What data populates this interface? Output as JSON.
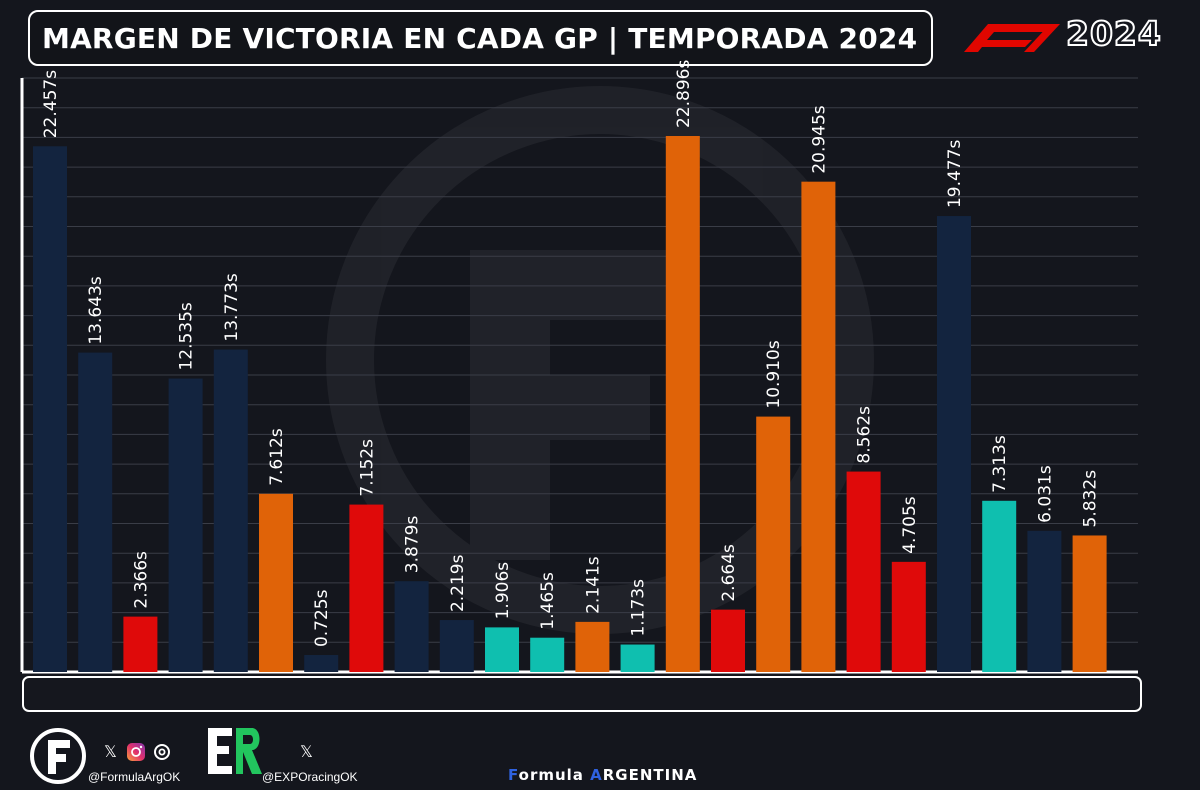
{
  "header": {
    "title": "MARGEN DE VICTORIA EN CADA GP | TEMPORADA 2024",
    "logo_year": "2024"
  },
  "colors": {
    "Red Bull": "#13243f",
    "McLaren": "#e06308",
    "Ferrari": "#df0a0a",
    "Mercedes": "#0fbfaf"
  },
  "chart_data": {
    "type": "bar",
    "title": "MARGEN DE VICTORIA EN CADA GP | TEMPORADA 2024",
    "xlabel": "",
    "ylabel": "",
    "ylim": [
      0,
      25
    ],
    "grid": true,
    "legend": "none",
    "categories": [
      "bahrain-flag",
      "saudi-arabia-flag",
      "australia-flag",
      "japan-flag",
      "china-flag",
      "usa-flag",
      "italy-flag",
      "monaco-flag",
      "canada-flag",
      "spain-flag",
      "austria-flag",
      "united-kingdom-flag",
      "hungary-flag",
      "belgium-flag",
      "netherlands-flag",
      "italy-flag",
      "azerbaijan-flag",
      "singapore-flag",
      "usa-flag",
      "mexico-flag",
      "brazil-flag",
      "usa-flag",
      "qatar-flag",
      "uae-flag"
    ],
    "values": [
      22.457,
      13.643,
      2.366,
      12.535,
      13.773,
      7.612,
      0.725,
      7.152,
      3.879,
      2.219,
      1.906,
      1.465,
      2.141,
      1.173,
      22.896,
      2.664,
      10.91,
      20.945,
      8.562,
      4.705,
      19.477,
      7.313,
      6.031,
      5.832
    ],
    "labels": [
      "22.457s",
      "13.643s",
      "2.366s",
      "12.535s",
      "13.773s",
      "7.612s",
      "0.725s",
      "7.152s",
      "3.879s",
      "2.219s",
      "1.906s",
      "1.465s",
      "2.141s",
      "1.173s",
      "22.896s",
      "2.664s",
      "10.910s",
      "20.945s",
      "8.562s",
      "4.705s",
      "19.477s",
      "7.313s",
      "6.031s",
      "5.832s"
    ],
    "bar_colors": [
      "#13243f",
      "#13243f",
      "#df0a0a",
      "#13243f",
      "#13243f",
      "#e06308",
      "#13243f",
      "#df0a0a",
      "#13243f",
      "#13243f",
      "#0fbfaf",
      "#0fbfaf",
      "#e06308",
      "#0fbfaf",
      "#e06308",
      "#df0a0a",
      "#e06308",
      "#e06308",
      "#df0a0a",
      "#df0a0a",
      "#13243f",
      "#0fbfaf",
      "#13243f",
      "#e06308"
    ]
  },
  "footer": {
    "handle_1": "@FormulaArgOK",
    "handle_2": "@EXPOracingOK",
    "brand_prefix": "F",
    "brand_mid": "ormula ",
    "brand_accent": "A",
    "brand_suffix": "RGENTINA",
    "x_glyph": "𝕏"
  }
}
